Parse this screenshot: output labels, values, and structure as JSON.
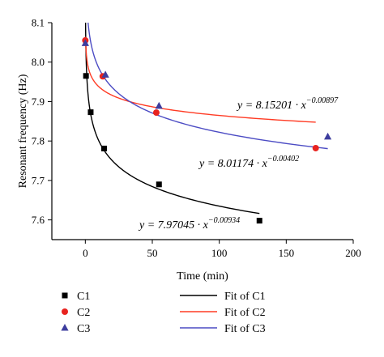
{
  "chart_data": {
    "type": "scatter",
    "xlabel": "Time (min)",
    "ylabel": "Resonant frequency (Hz)",
    "xlim": [
      -25,
      200
    ],
    "ylim": [
      7.55,
      8.1
    ],
    "xticks": [
      "0",
      "50",
      "100",
      "150",
      "200"
    ],
    "yticks": [
      "7.6",
      "7.7",
      "7.8",
      "7.9",
      "8.0",
      "8.1"
    ],
    "legend_placement": "bottom",
    "series": [
      {
        "name": "C1",
        "marker": "square",
        "color": "#000000",
        "x": [
          0.5,
          4,
          14,
          55,
          130
        ],
        "y": [
          7.965,
          7.873,
          7.781,
          7.69,
          7.598
        ],
        "fit_name": "Fit of C1",
        "fit_color": "#000000",
        "fit_a": 7.97045,
        "fit_b": -0.00934,
        "fit_x_range": [
          0.15,
          130
        ],
        "equation_prefix": "y = 7.97045 · x",
        "equation_exp": "−0.00934"
      },
      {
        "name": "C2",
        "marker": "circle",
        "color": "#e8231f",
        "x": [
          0,
          13,
          53,
          172
        ],
        "y": [
          8.055,
          7.964,
          7.872,
          7.782
        ],
        "fit_name": "Fit of C2",
        "fit_color": "#ff3b24",
        "fit_a": 8.01174,
        "fit_b": -0.00402,
        "fit_x_range": [
          0.2,
          172
        ],
        "equation_prefix": "y = 8.01174 · x",
        "equation_exp": "−0.00402"
      },
      {
        "name": "C3",
        "marker": "triangle",
        "color": "#3d3d9e",
        "x": [
          0,
          15,
          55,
          181
        ],
        "y": [
          8.048,
          7.968,
          7.889,
          7.811
        ],
        "fit_name": "Fit of C3",
        "fit_color": "#4c4cc4",
        "fit_a": 8.15201,
        "fit_b": -0.00897,
        "fit_x_range": [
          0.2,
          181
        ],
        "equation_prefix": "y = 8.15201 · x",
        "equation_exp": "−0.00897"
      }
    ]
  }
}
